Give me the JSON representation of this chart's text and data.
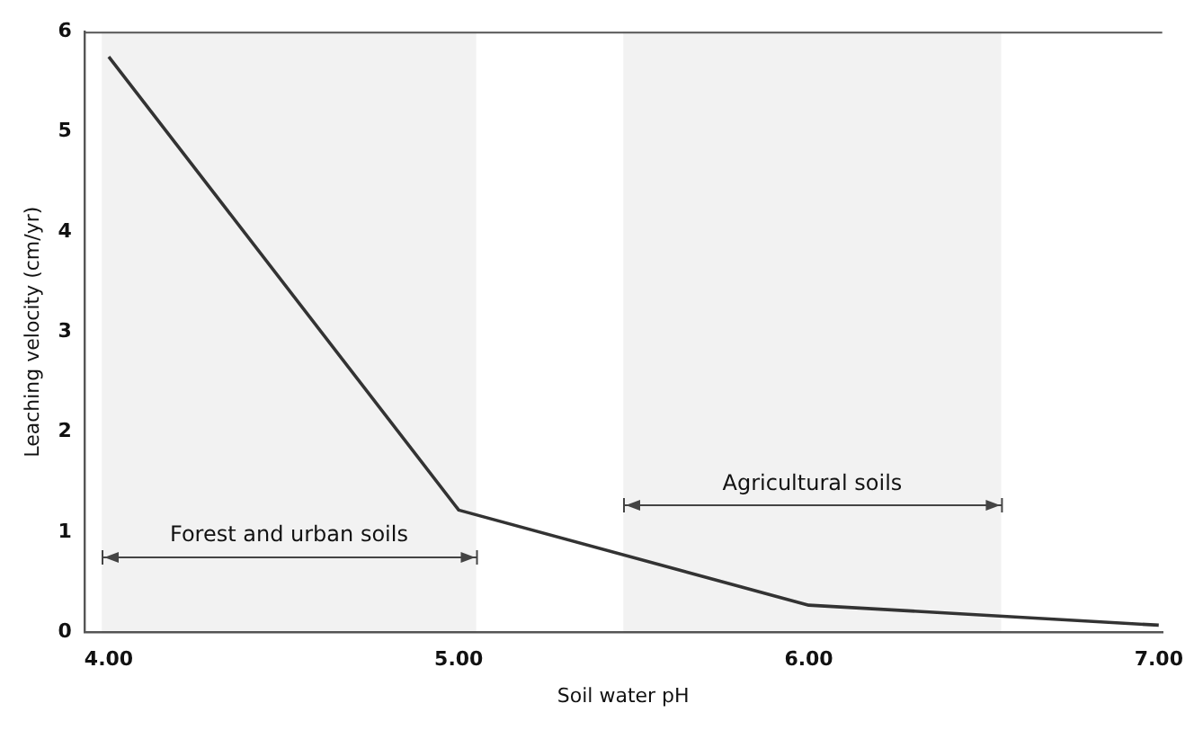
{
  "chart_data": {
    "type": "line",
    "xlabel": "Soil water pH",
    "ylabel": "Leaching velocity (cm/yr)",
    "x": [
      4.0,
      5.0,
      6.0,
      7.0
    ],
    "series": [
      {
        "color": "#333333",
        "values": [
          5.75,
          1.22,
          0.27,
          0.07
        ]
      }
    ],
    "xlim": [
      3.93,
      7.01
    ],
    "xticks": [
      {
        "value": 4,
        "label": "4.00"
      },
      {
        "value": 5,
        "label": "5.00"
      },
      {
        "value": 6,
        "label": "6.00"
      },
      {
        "value": 7,
        "label": "7.00"
      }
    ],
    "ylim": [
      0,
      6
    ],
    "yticks": [
      0,
      1,
      2,
      3,
      4,
      5,
      6
    ],
    "bands": [
      {
        "axis": "x",
        "from": 3.98,
        "to": 5.05,
        "label": "Forest and urban soils",
        "color": "#444444"
      },
      {
        "axis": "x",
        "from": 5.47,
        "to": 6.55,
        "label": "Agricultural soils",
        "color": "#444444"
      }
    ],
    "grid": false,
    "legend": false,
    "marker": "none",
    "line_style": "solid"
  }
}
